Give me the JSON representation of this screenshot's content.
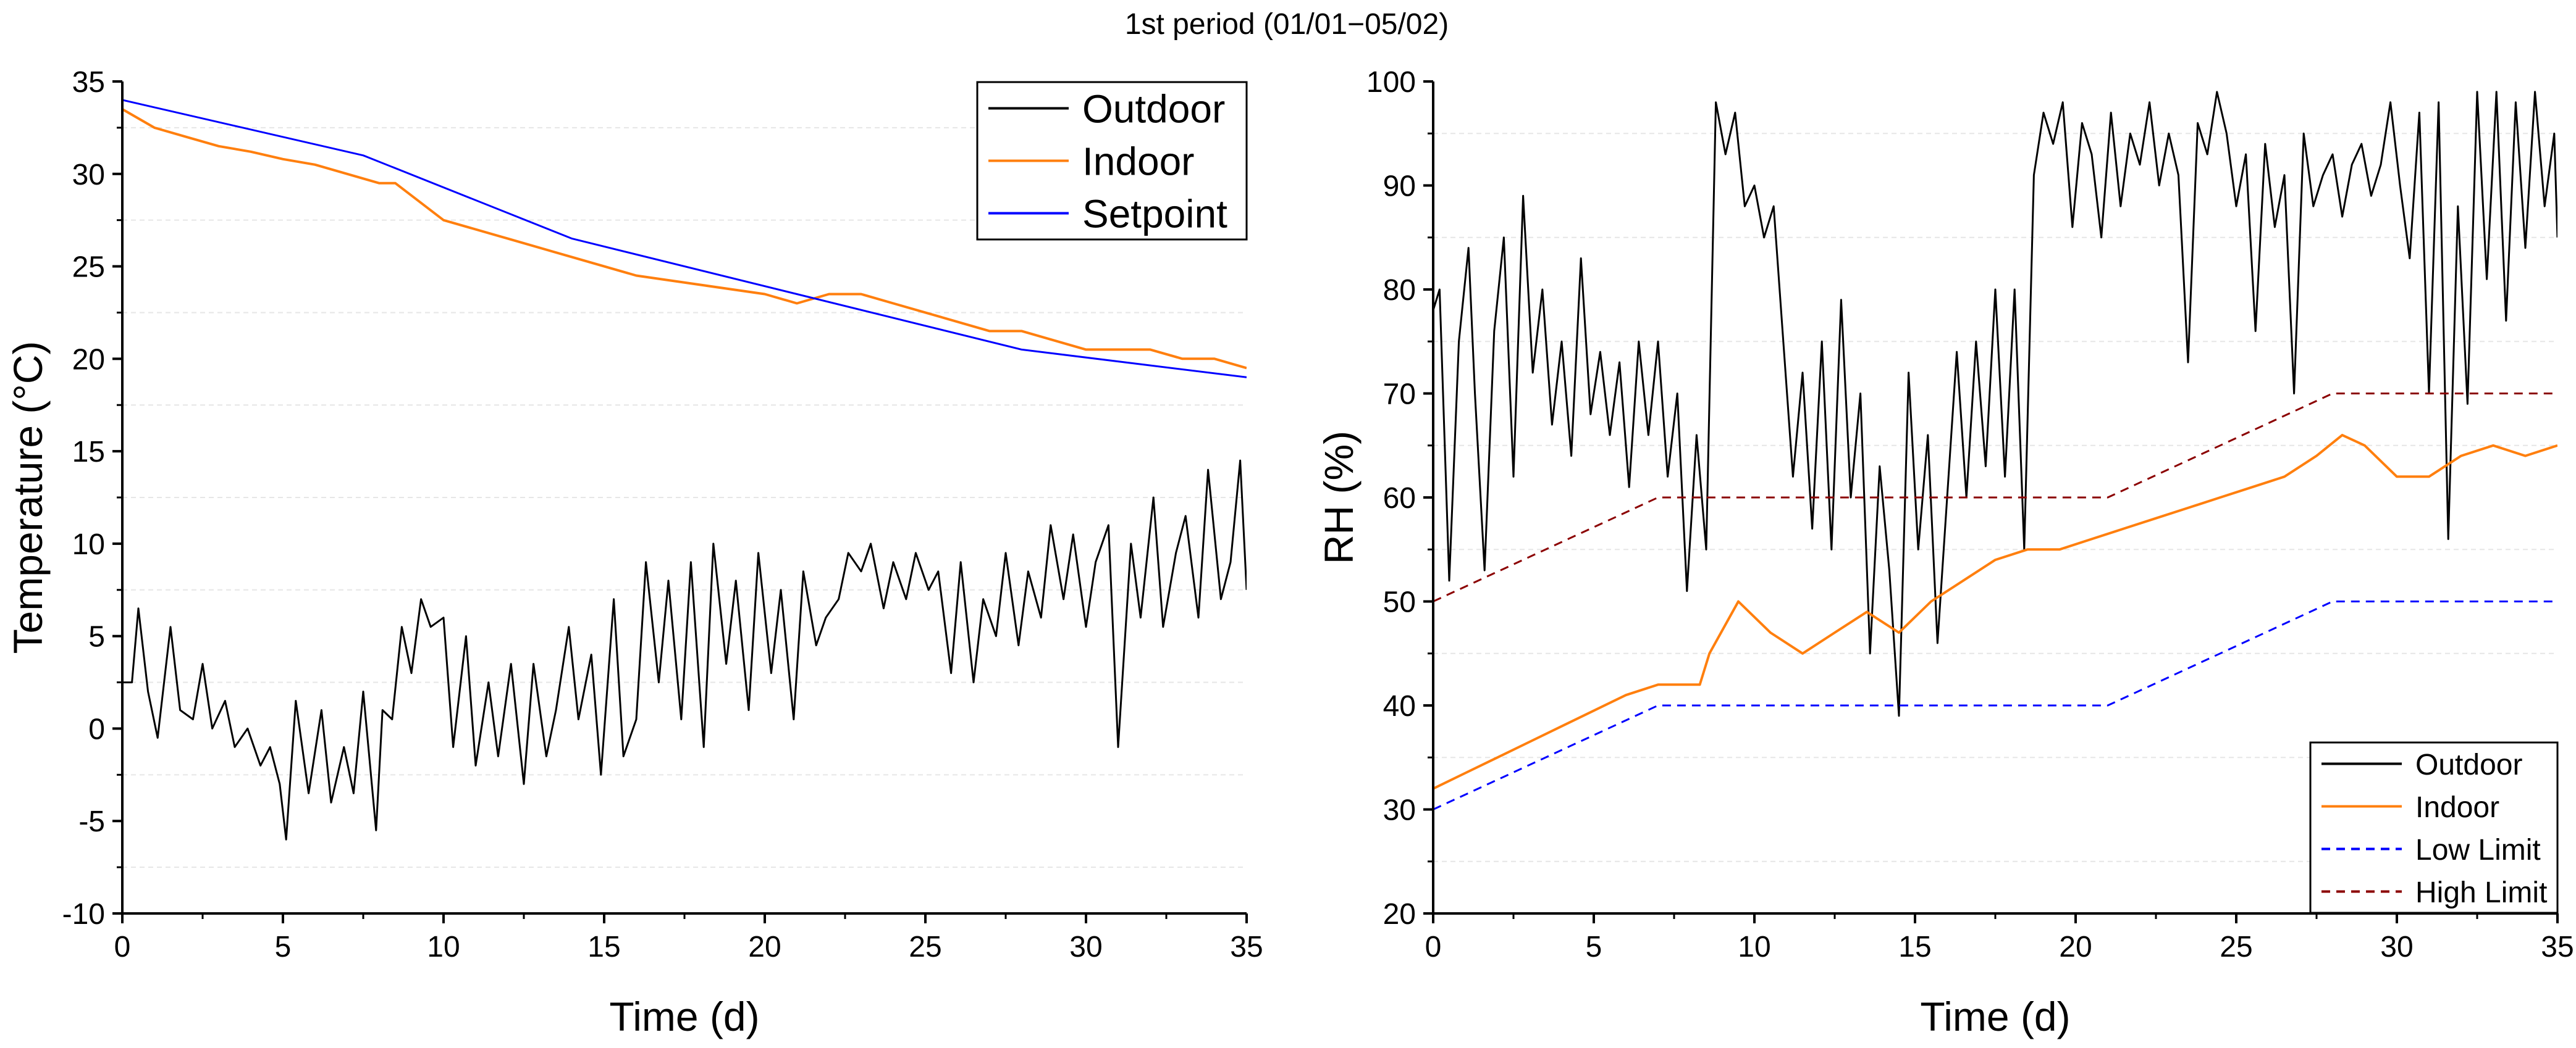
{
  "figure_title": "1st period (01/01−05/02)",
  "chart_data": [
    {
      "type": "line",
      "title": "",
      "xlabel": "Time (d)",
      "ylabel": "Temperature (°C)",
      "xlim": [
        0,
        35
      ],
      "ylim": [
        -10,
        35
      ],
      "xticks": [
        0,
        5,
        10,
        15,
        20,
        25,
        30,
        35
      ],
      "yticks": [
        -10,
        -5,
        0,
        5,
        10,
        15,
        20,
        25,
        30,
        35
      ],
      "legend_position": "top-right",
      "series": [
        {
          "name": "Outdoor",
          "color": "#000000",
          "style": "solid",
          "x": [
            0,
            0.3,
            0.5,
            0.8,
            1.1,
            1.5,
            1.8,
            2.2,
            2.5,
            2.8,
            3.2,
            3.5,
            3.9,
            4.3,
            4.6,
            4.9,
            5.1,
            5.4,
            5.8,
            6.2,
            6.5,
            6.9,
            7.2,
            7.5,
            7.9,
            8.1,
            8.4,
            8.7,
            9.0,
            9.3,
            9.6,
            10.0,
            10.3,
            10.7,
            11.0,
            11.4,
            11.7,
            12.1,
            12.5,
            12.8,
            13.2,
            13.5,
            13.9,
            14.2,
            14.6,
            14.9,
            15.3,
            15.6,
            16.0,
            16.3,
            16.7,
            17.0,
            17.4,
            17.7,
            18.1,
            18.4,
            18.8,
            19.1,
            19.5,
            19.8,
            20.2,
            20.5,
            20.9,
            21.2,
            21.6,
            21.9,
            22.3,
            22.6,
            23.0,
            23.3,
            23.7,
            24.0,
            24.4,
            24.7,
            25.1,
            25.4,
            25.8,
            26.1,
            26.5,
            26.8,
            27.2,
            27.5,
            27.9,
            28.2,
            28.6,
            28.9,
            29.3,
            29.6,
            30.0,
            30.3,
            30.7,
            31.0,
            31.4,
            31.7,
            32.1,
            32.4,
            32.8,
            33.1,
            33.5,
            33.8,
            34.2,
            34.5,
            34.8,
            35.0
          ],
          "y": [
            2.5,
            2.5,
            6.5,
            2.0,
            -0.5,
            5.5,
            1.0,
            0.5,
            3.5,
            0.0,
            1.5,
            -1.0,
            0.0,
            -2.0,
            -1.0,
            -3.0,
            -6.0,
            1.5,
            -3.5,
            1.0,
            -4.0,
            -1.0,
            -3.5,
            2.0,
            -5.5,
            1.0,
            0.5,
            5.5,
            3.0,
            7.0,
            5.5,
            6.0,
            -1.0,
            5.0,
            -2.0,
            2.5,
            -1.5,
            3.5,
            -3.0,
            3.5,
            -1.5,
            1.0,
            5.5,
            0.5,
            4.0,
            -2.5,
            7.0,
            -1.5,
            0.5,
            9.0,
            2.5,
            8.0,
            0.5,
            9.0,
            -1.0,
            10.0,
            3.5,
            8.0,
            1.0,
            9.5,
            3.0,
            7.5,
            0.5,
            8.5,
            4.5,
            6.0,
            7.0,
            9.5,
            8.5,
            10.0,
            6.5,
            9.0,
            7.0,
            9.5,
            7.5,
            8.5,
            3.0,
            9.0,
            2.5,
            7.0,
            5.0,
            9.5,
            4.5,
            8.5,
            6.0,
            11.0,
            7.0,
            10.5,
            5.5,
            9.0,
            11.0,
            -1.0,
            10.0,
            6.0,
            12.5,
            5.5,
            9.5,
            11.5,
            6.0,
            14.0,
            7.0,
            9.0,
            14.5,
            7.5
          ]
        },
        {
          "name": "Indoor",
          "color": "#ff7f0e",
          "style": "solid",
          "x": [
            0,
            1,
            2,
            3,
            4,
            5,
            6,
            7,
            8,
            8.5,
            10,
            12,
            14,
            16,
            18,
            20,
            21,
            22,
            23,
            24,
            25,
            26,
            27,
            28,
            29,
            30,
            31,
            32,
            33,
            34,
            35
          ],
          "y": [
            33.5,
            32.5,
            32.0,
            31.5,
            31.2,
            30.8,
            30.5,
            30.0,
            29.5,
            29.5,
            27.5,
            26.5,
            25.5,
            24.5,
            24.0,
            23.5,
            23.0,
            23.5,
            23.5,
            23.0,
            22.5,
            22.0,
            21.5,
            21.5,
            21.0,
            20.5,
            20.5,
            20.5,
            20.0,
            20.0,
            19.5
          ]
        },
        {
          "name": "Setpoint",
          "color": "#0000ff",
          "style": "solid",
          "x": [
            0,
            7.5,
            14,
            21,
            28,
            35
          ],
          "y": [
            34,
            31,
            26.5,
            23.5,
            20.5,
            19
          ]
        }
      ]
    },
    {
      "type": "line",
      "title": "",
      "xlabel": "Time (d)",
      "ylabel": "RH (%)",
      "xlim": [
        0,
        35
      ],
      "ylim": [
        20,
        100
      ],
      "xticks": [
        0,
        5,
        10,
        15,
        20,
        25,
        30,
        35
      ],
      "yticks": [
        20,
        30,
        40,
        50,
        60,
        70,
        80,
        90,
        100
      ],
      "legend_position": "bottom-right",
      "series": [
        {
          "name": "Outdoor",
          "color": "#000000",
          "style": "solid",
          "x": [
            0,
            0.2,
            0.5,
            0.8,
            1.1,
            1.3,
            1.6,
            1.9,
            2.2,
            2.5,
            2.8,
            3.1,
            3.4,
            3.7,
            4.0,
            4.3,
            4.6,
            4.9,
            5.2,
            5.5,
            5.8,
            6.1,
            6.4,
            6.7,
            7.0,
            7.3,
            7.6,
            7.9,
            8.2,
            8.5,
            8.8,
            9.1,
            9.4,
            9.7,
            10.0,
            10.3,
            10.6,
            10.9,
            11.2,
            11.5,
            11.8,
            12.1,
            12.4,
            12.7,
            13.0,
            13.3,
            13.6,
            13.9,
            14.2,
            14.5,
            14.8,
            15.1,
            15.4,
            15.7,
            16.0,
            16.3,
            16.6,
            16.9,
            17.2,
            17.5,
            17.8,
            18.1,
            18.4,
            18.7,
            19.0,
            19.3,
            19.6,
            19.9,
            20.2,
            20.5,
            20.8,
            21.1,
            21.4,
            21.7,
            22.0,
            22.3,
            22.6,
            22.9,
            23.2,
            23.5,
            23.8,
            24.1,
            24.4,
            24.7,
            25.0,
            25.3,
            25.6,
            25.9,
            26.2,
            26.5,
            26.8,
            27.1,
            27.4,
            27.7,
            28.0,
            28.3,
            28.6,
            28.9,
            29.2,
            29.5,
            29.8,
            30.1,
            30.4,
            30.7,
            31.0,
            31.3,
            31.6,
            31.9,
            32.2,
            32.5,
            32.8,
            33.1,
            33.4,
            33.7,
            34.0,
            34.3,
            34.6,
            34.9,
            35.0
          ],
          "y": [
            78,
            80,
            52,
            75,
            84,
            70,
            53,
            76,
            85,
            62,
            89,
            72,
            80,
            67,
            75,
            64,
            83,
            68,
            74,
            66,
            73,
            61,
            75,
            66,
            75,
            62,
            70,
            51,
            66,
            55,
            98,
            93,
            97,
            88,
            90,
            85,
            88,
            75,
            62,
            72,
            57,
            75,
            55,
            79,
            60,
            70,
            45,
            63,
            53,
            39,
            72,
            55,
            66,
            46,
            60,
            74,
            60,
            75,
            63,
            80,
            62,
            80,
            55,
            91,
            97,
            94,
            98,
            86,
            96,
            93,
            85,
            97,
            88,
            95,
            92,
            98,
            90,
            95,
            91,
            73,
            96,
            93,
            99,
            95,
            88,
            93,
            76,
            94,
            86,
            91,
            70,
            95,
            88,
            91,
            93,
            87,
            92,
            94,
            89,
            92,
            98,
            90,
            83,
            97,
            70,
            98,
            56,
            88,
            69,
            99,
            81,
            99,
            77,
            98,
            84,
            99,
            88,
            95,
            85
          ]
        },
        {
          "name": "Indoor",
          "color": "#ff7f0e",
          "style": "solid",
          "x": [
            0,
            1,
            2,
            3,
            4,
            5,
            6,
            7,
            8.3,
            8.6,
            9.5,
            10.5,
            11.5,
            12.5,
            13.5,
            14.5,
            15.5,
            16.5,
            17.5,
            18.5,
            19.5,
            20.5,
            21.5,
            22.5,
            23.5,
            24.5,
            25.5,
            26.5,
            27.5,
            28.3,
            29,
            30,
            31,
            32,
            33,
            34,
            35
          ],
          "y": [
            32,
            33.5,
            35,
            36.5,
            38,
            39.5,
            41,
            42,
            42,
            45,
            50,
            47,
            45,
            47,
            49,
            47,
            50,
            52,
            54,
            55,
            55,
            56,
            57,
            58,
            59,
            60,
            61,
            62,
            64,
            66,
            65,
            62,
            62,
            64,
            65,
            64,
            65
          ]
        },
        {
          "name": "Low Limit",
          "color": "#0000ff",
          "style": "dashed",
          "x": [
            0,
            7,
            21,
            28,
            35
          ],
          "y": [
            30,
            40,
            40,
            50,
            50
          ]
        },
        {
          "name": "High Limit",
          "color": "#8b0000",
          "style": "dashed",
          "x": [
            0,
            7,
            21,
            28,
            35
          ],
          "y": [
            50,
            60,
            60,
            70,
            70
          ]
        }
      ]
    }
  ]
}
